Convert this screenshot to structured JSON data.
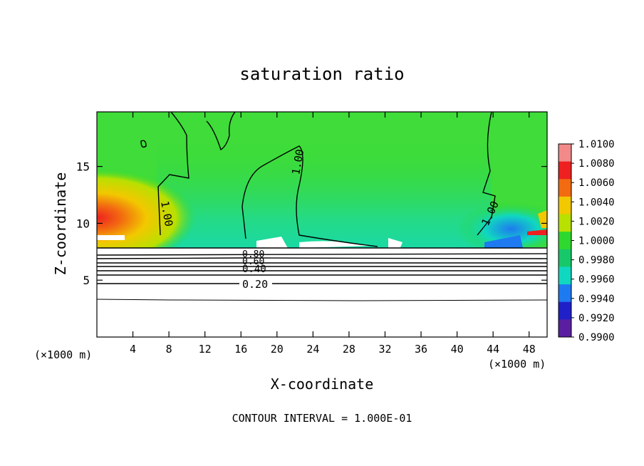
{
  "chart_data": {
    "type": "heatmap",
    "title": "saturation ratio",
    "xlabel": "X-coordinate",
    "ylabel": "Z-coordinate",
    "x_unit_label": "(×1000 m)",
    "x_unit_label_right": "(×1000 m)",
    "xlim": [
      0,
      50
    ],
    "ylim": [
      0,
      19.8
    ],
    "x_ticks": [
      4,
      8,
      12,
      16,
      20,
      24,
      28,
      32,
      36,
      40,
      44,
      48
    ],
    "y_ticks": [
      5,
      10,
      15
    ],
    "colorbar": {
      "ticks": [
        "1.0100",
        "1.0080",
        "1.0060",
        "1.0040",
        "1.0020",
        "1.0000",
        "0.9980",
        "0.9960",
        "0.9940",
        "0.9920",
        "0.9900"
      ],
      "colors": [
        "#f28a8a",
        "#ee2020",
        "#f26b10",
        "#f2c800",
        "#b8e000",
        "#2ed82e",
        "#17c86a",
        "#10d8c0",
        "#1e7af0",
        "#2020c8",
        "#5a1fa0"
      ],
      "range": [
        0.99,
        1.01
      ]
    },
    "contour_labels": [
      "1.00",
      "1.00",
      "1.00",
      "0.80",
      "0.60",
      "0.40",
      "0.20"
    ],
    "contour_interval_text": "CONTOUR INTERVAL = 1.000E-01"
  }
}
